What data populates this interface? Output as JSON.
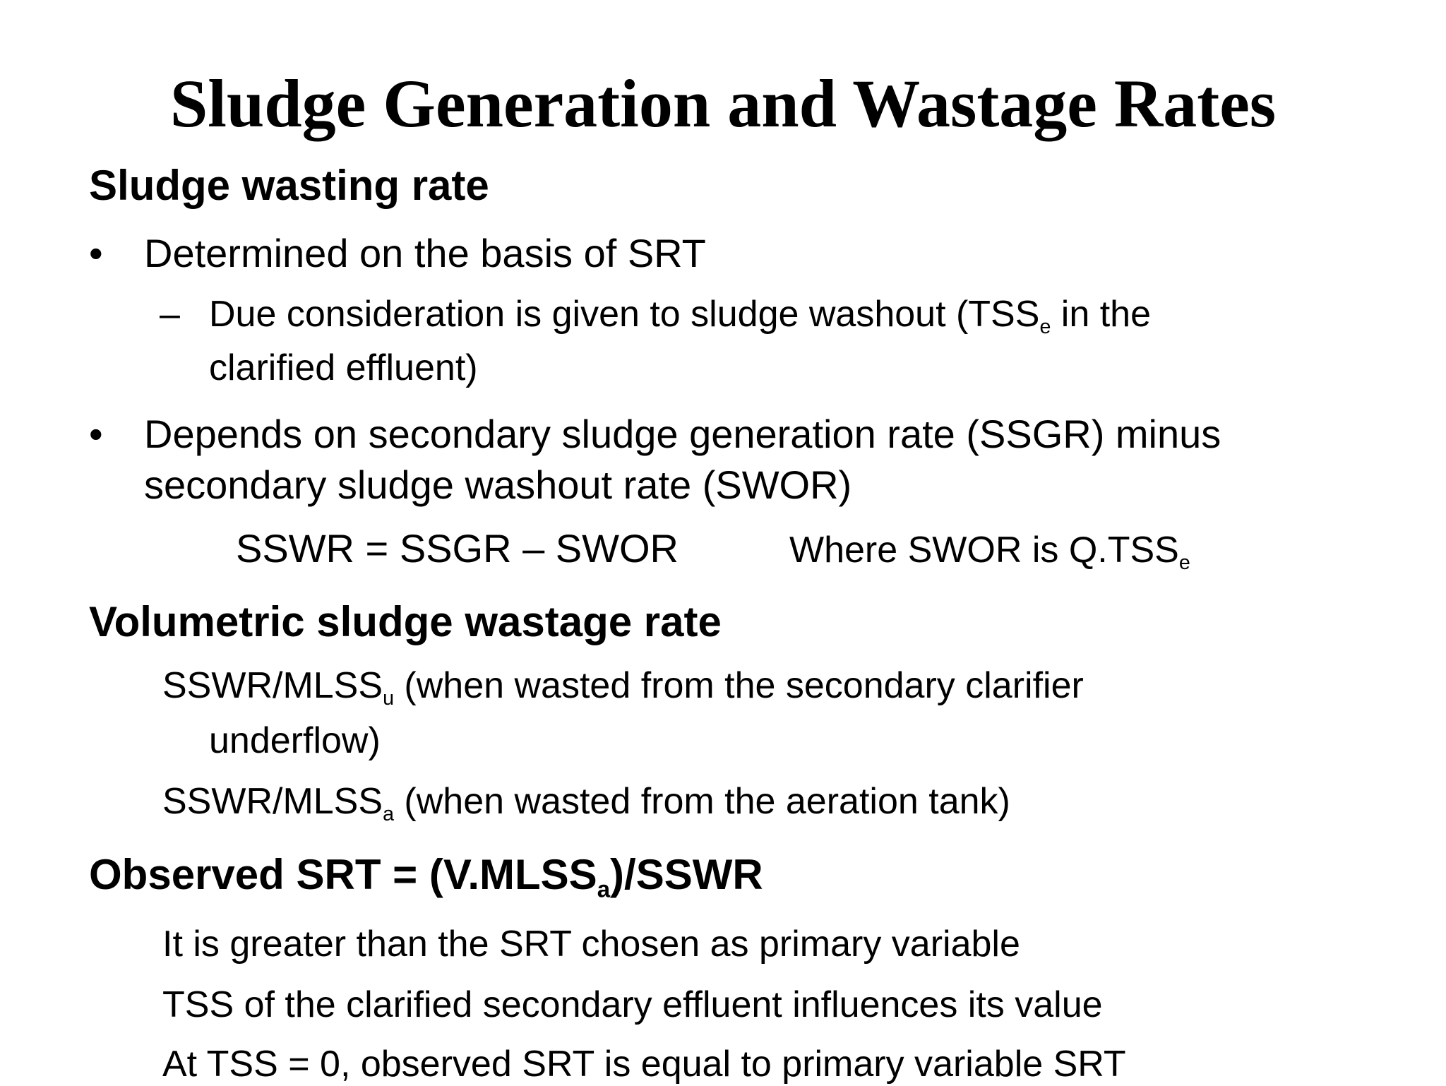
{
  "title": "Sludge Generation and Wastage Rates",
  "sections": {
    "wasting": {
      "heading": "Sludge wasting rate",
      "bullet1": "Determined on the basis of SRT",
      "dash": "–",
      "sub1_a": "Due consideration is given to sludge washout (TSS",
      "sub1_sub": "e",
      "sub1_b": " in the",
      "sub1_c": "clarified effluent)",
      "bullet2_a": "Depends on secondary sludge generation rate (SSGR) minus",
      "bullet2_b": "secondary sludge washout rate (SWOR)",
      "equation": "SSWR = SSGR – SWOR",
      "where_a": "Where SWOR is Q.TSS",
      "where_sub": "e"
    },
    "volumetric": {
      "heading": "Volumetric sludge wastage rate",
      "line1_a": "SSWR/MLSS",
      "line1_sub": "u",
      "line1_b": " (when wasted from the secondary clarifier",
      "line1_c": "underflow)",
      "line2_a": "SSWR/MLSS",
      "line2_sub": "a",
      "line2_b": " (when wasted from the aeration tank)"
    },
    "observed": {
      "heading_a": "Observed SRT = (V.MLSS",
      "heading_sub": "a",
      "heading_b": ")/SSWR",
      "line1": "It is greater than the SRT chosen as primary variable",
      "line2": "TSS of the clarified secondary effluent influences its value",
      "line3": "At TSS = 0, observed SRT is equal to primary variable SRT"
    }
  },
  "bullet_glyph": "•"
}
